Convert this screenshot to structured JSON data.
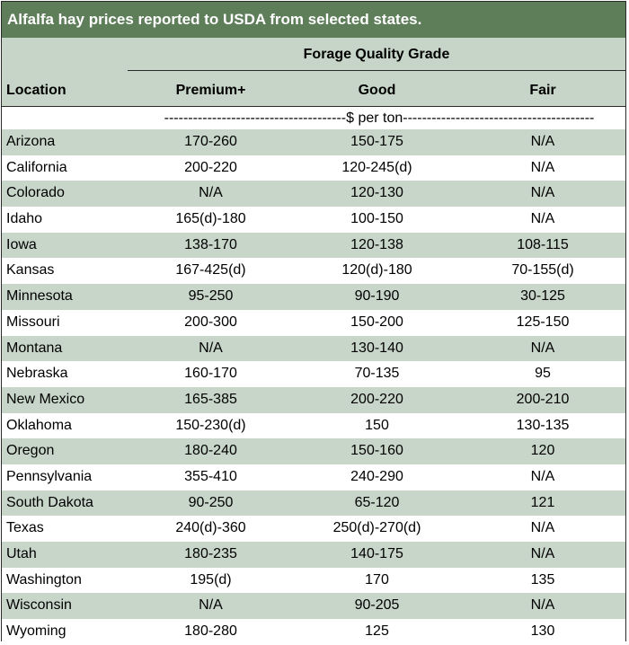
{
  "title": "Alfalfa hay prices reported to USDA from selected states.",
  "group_header": "Forage Quality Grade",
  "columns": {
    "location": "Location",
    "premium": "Premium+",
    "good": "Good",
    "fair": "Fair"
  },
  "units": "--------------------------------------$ per ton----------------------------------------",
  "rows": [
    {
      "location": "Arizona",
      "premium": "170-260",
      "good": "150-175",
      "fair": "N/A"
    },
    {
      "location": "California",
      "premium": "200-220",
      "good": "120-245(d)",
      "fair": "N/A"
    },
    {
      "location": "Colorado",
      "premium": "N/A",
      "good": "120-130",
      "fair": "N/A"
    },
    {
      "location": "Idaho",
      "premium": "165(d)-180",
      "good": "100-150",
      "fair": "N/A"
    },
    {
      "location": "Iowa",
      "premium": "138-170",
      "good": "120-138",
      "fair": "108-115"
    },
    {
      "location": "Kansas",
      "premium": "167-425(d)",
      "good": "120(d)-180",
      "fair": "70-155(d)"
    },
    {
      "location": "Minnesota",
      "premium": "95-250",
      "good": "90-190",
      "fair": "30-125"
    },
    {
      "location": "Missouri",
      "premium": "200-300",
      "good": "150-200",
      "fair": "125-150"
    },
    {
      "location": "Montana",
      "premium": "N/A",
      "good": "130-140",
      "fair": "N/A"
    },
    {
      "location": "Nebraska",
      "premium": "160-170",
      "good": "70-135",
      "fair": "95"
    },
    {
      "location": "New Mexico",
      "premium": "165-385",
      "good": "200-220",
      "fair": "200-210"
    },
    {
      "location": "Oklahoma",
      "premium": "150-230(d)",
      "good": "150",
      "fair": "130-135"
    },
    {
      "location": "Oregon",
      "premium": "180-240",
      "good": "150-160",
      "fair": "120"
    },
    {
      "location": "Pennsylvania",
      "premium": "355-410",
      "good": "240-290",
      "fair": "N/A"
    },
    {
      "location": "South Dakota",
      "premium": "90-250",
      "good": "65-120",
      "fair": "121"
    },
    {
      "location": "Texas",
      "premium": "240(d)-360",
      "good": "250(d)-270(d)",
      "fair": "N/A"
    },
    {
      "location": "Utah",
      "premium": "180-235",
      "good": "140-175",
      "fair": "N/A"
    },
    {
      "location": "Washington",
      "premium": "195(d)",
      "good": "170",
      "fair": "135"
    },
    {
      "location": "Wisconsin",
      "premium": "N/A",
      "good": "90-205",
      "fair": "N/A"
    },
    {
      "location": "Wyoming",
      "premium": "180-280",
      "good": "125",
      "fair": "130"
    }
  ],
  "colors": {
    "title_bar": "#5e7e5a",
    "shaded_row": "#c8d6ca",
    "header_bg": "#c6d5c7"
  }
}
